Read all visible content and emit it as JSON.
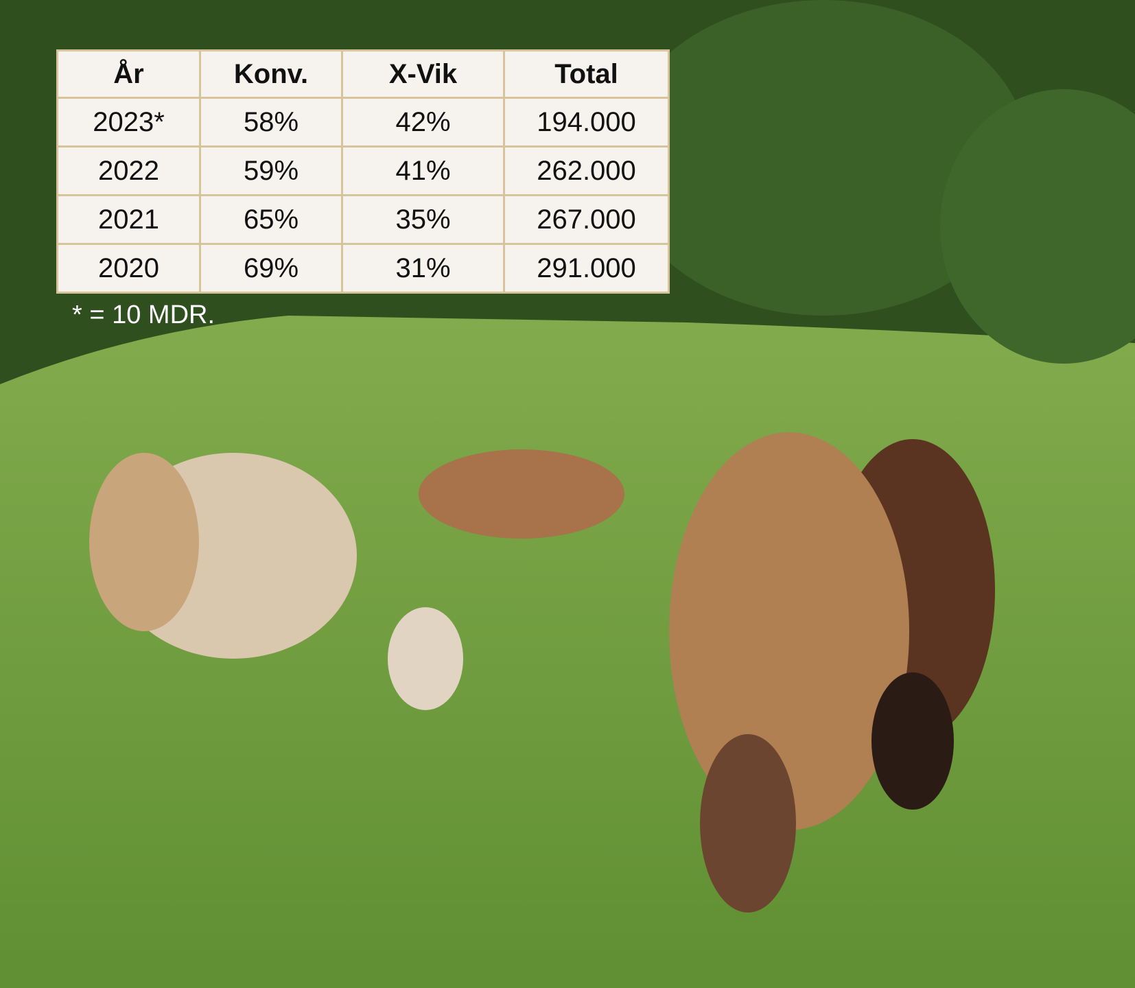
{
  "table": {
    "header": [
      "År",
      "Konv.",
      "X-Vik",
      "Total"
    ],
    "rows": [
      [
        "2023*",
        "58%",
        "42%",
        "194.000"
      ],
      [
        "2022",
        "59%",
        "41%",
        "262.000"
      ],
      [
        "2021",
        "65%",
        "35%",
        "267.000"
      ],
      [
        "2020",
        "69%",
        "31%",
        "291.000"
      ]
    ]
  },
  "footnote": "* = 10 MDR."
}
